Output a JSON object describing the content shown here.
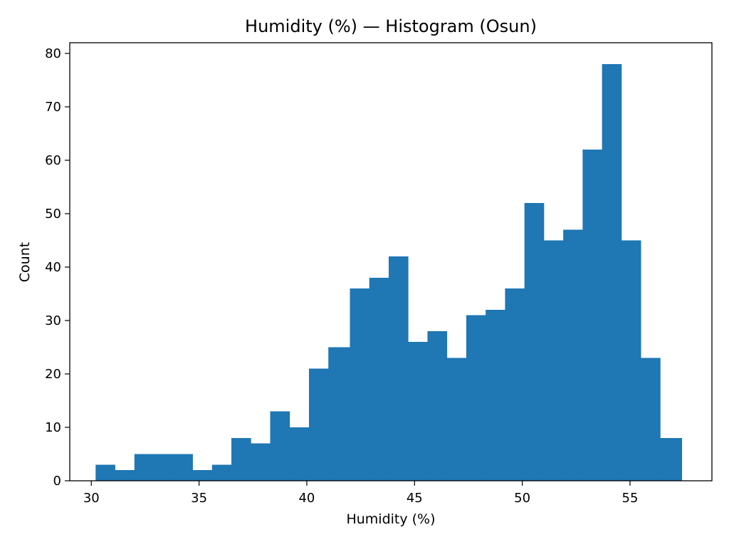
{
  "chart_data": {
    "type": "bar",
    "title": "Humidity (%) — Histogram (Osun)",
    "xlabel": "Humidity (%)",
    "ylabel": "Count",
    "xlim": [
      29.0,
      58.8
    ],
    "ylim": [
      0,
      82
    ],
    "x_ticks": [
      30,
      35,
      40,
      45,
      50,
      55
    ],
    "y_ticks": [
      0,
      10,
      20,
      30,
      40,
      50,
      60,
      70,
      80
    ],
    "grid": false,
    "bar_color": "#1f77b4",
    "bins": [
      {
        "x0": 30.2,
        "x1": 31.1,
        "count": 3
      },
      {
        "x0": 31.1,
        "x2": 0,
        "x1": 32.0,
        "count": 2
      },
      {
        "x0": 32.0,
        "x1": 32.9,
        "count": 5
      },
      {
        "x0": 32.9,
        "x1": 33.8,
        "count": 5
      },
      {
        "x0": 33.8,
        "x1": 34.7,
        "count": 5
      },
      {
        "x0": 34.7,
        "x1": 35.6,
        "count": 2
      },
      {
        "x0": 35.6,
        "x1": 36.5,
        "count": 3
      },
      {
        "x0": 36.5,
        "x1": 37.4,
        "count": 8
      },
      {
        "x0": 37.4,
        "x1": 38.3,
        "count": 7
      },
      {
        "x0": 38.3,
        "x1": 39.2,
        "count": 13
      },
      {
        "x0": 39.2,
        "x1": 40.1,
        "count": 10
      },
      {
        "x0": 40.1,
        "x1": 41.0,
        "count": 21
      },
      {
        "x0": 41.0,
        "x1": 42.0,
        "count": 25
      },
      {
        "x0": 42.0,
        "x1": 42.9,
        "count": 36
      },
      {
        "x0": 42.9,
        "x1": 43.8,
        "count": 38
      },
      {
        "x0": 43.8,
        "x1": 44.7,
        "count": 42
      },
      {
        "x0": 44.7,
        "x1": 45.6,
        "count": 26
      },
      {
        "x0": 45.6,
        "x1": 46.5,
        "count": 28
      },
      {
        "x0": 46.5,
        "x1": 47.4,
        "count": 23
      },
      {
        "x0": 47.4,
        "x1": 48.3,
        "count": 31
      },
      {
        "x0": 48.3,
        "x1": 49.2,
        "count": 32
      },
      {
        "x0": 49.2,
        "x1": 50.1,
        "count": 36
      },
      {
        "x0": 50.1,
        "x1": 51.0,
        "count": 52
      },
      {
        "x0": 51.0,
        "x1": 51.9,
        "count": 45
      },
      {
        "x0": 51.9,
        "x1": 52.8,
        "count": 47
      },
      {
        "x0": 52.8,
        "x1": 53.7,
        "count": 62
      },
      {
        "x0": 53.7,
        "x1": 54.6,
        "count": 78
      },
      {
        "x0": 54.6,
        "x1": 55.5,
        "count": 45
      },
      {
        "x0": 55.5,
        "x1": 56.4,
        "count": 23
      },
      {
        "x0": 56.4,
        "x1": 57.4,
        "count": 8
      }
    ]
  }
}
